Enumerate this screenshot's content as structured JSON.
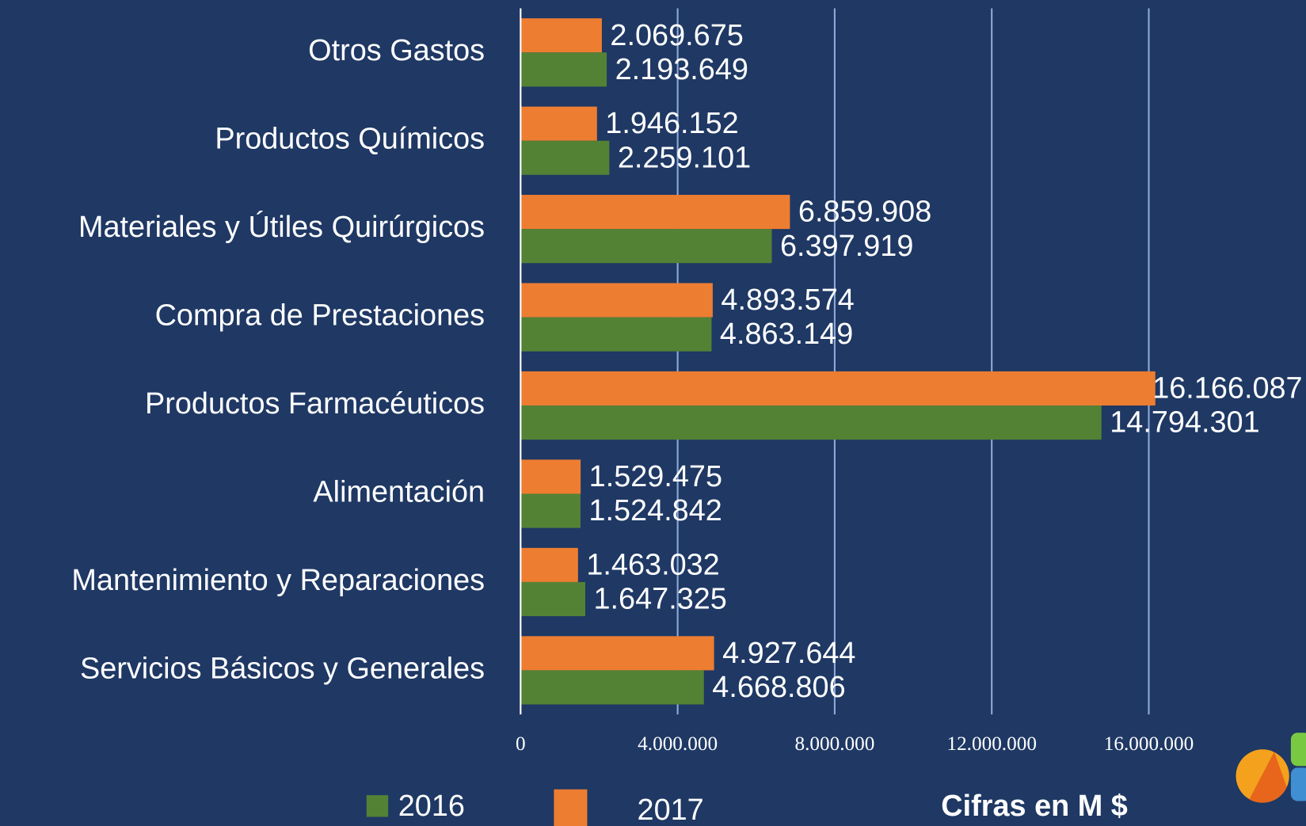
{
  "chart_data": {
    "type": "bar",
    "orientation": "horizontal",
    "categories": [
      "Otros Gastos",
      "Productos Químicos",
      "Materiales y Útiles Quirúrgicos",
      "Compra de Prestaciones",
      "Productos Farmacéuticos",
      "Alimentación",
      "Mantenimiento y Reparaciones",
      "Servicios Básicos y Generales"
    ],
    "series": [
      {
        "name": "2016",
        "color": "#548235",
        "values": [
          2193649,
          2259101,
          6397919,
          4863149,
          14794301,
          1524842,
          1647325,
          4668806
        ],
        "value_labels": [
          "2.193.649",
          "2.259.101",
          "6.397.919",
          "4.863.149",
          "14.794.301",
          "1.524.842",
          "1.647.325",
          "4.668.806"
        ]
      },
      {
        "name": "2017",
        "color": "#ed7d31",
        "values": [
          2069675,
          1946152,
          6859908,
          4893574,
          16166087,
          1529475,
          1463032,
          4927644
        ],
        "value_labels": [
          "2.069.675",
          "1.946.152",
          "6.859.908",
          "4.893.574",
          "16.166.087",
          "1.529.475",
          "1.463.032",
          "4.927.644"
        ]
      }
    ],
    "xlim": [
      0,
      20000000
    ],
    "xticks": [
      0,
      {
        "value": 4000000,
        "label": "4.000.000"
      },
      {
        "value": 8000000,
        "label": "8.000.000"
      },
      {
        "value": 12000000,
        "label": "12.000.000"
      },
      {
        "value": 16000000,
        "label": "16.000.000"
      }
    ],
    "grid": true,
    "annotation": "Cifras en M $"
  }
}
